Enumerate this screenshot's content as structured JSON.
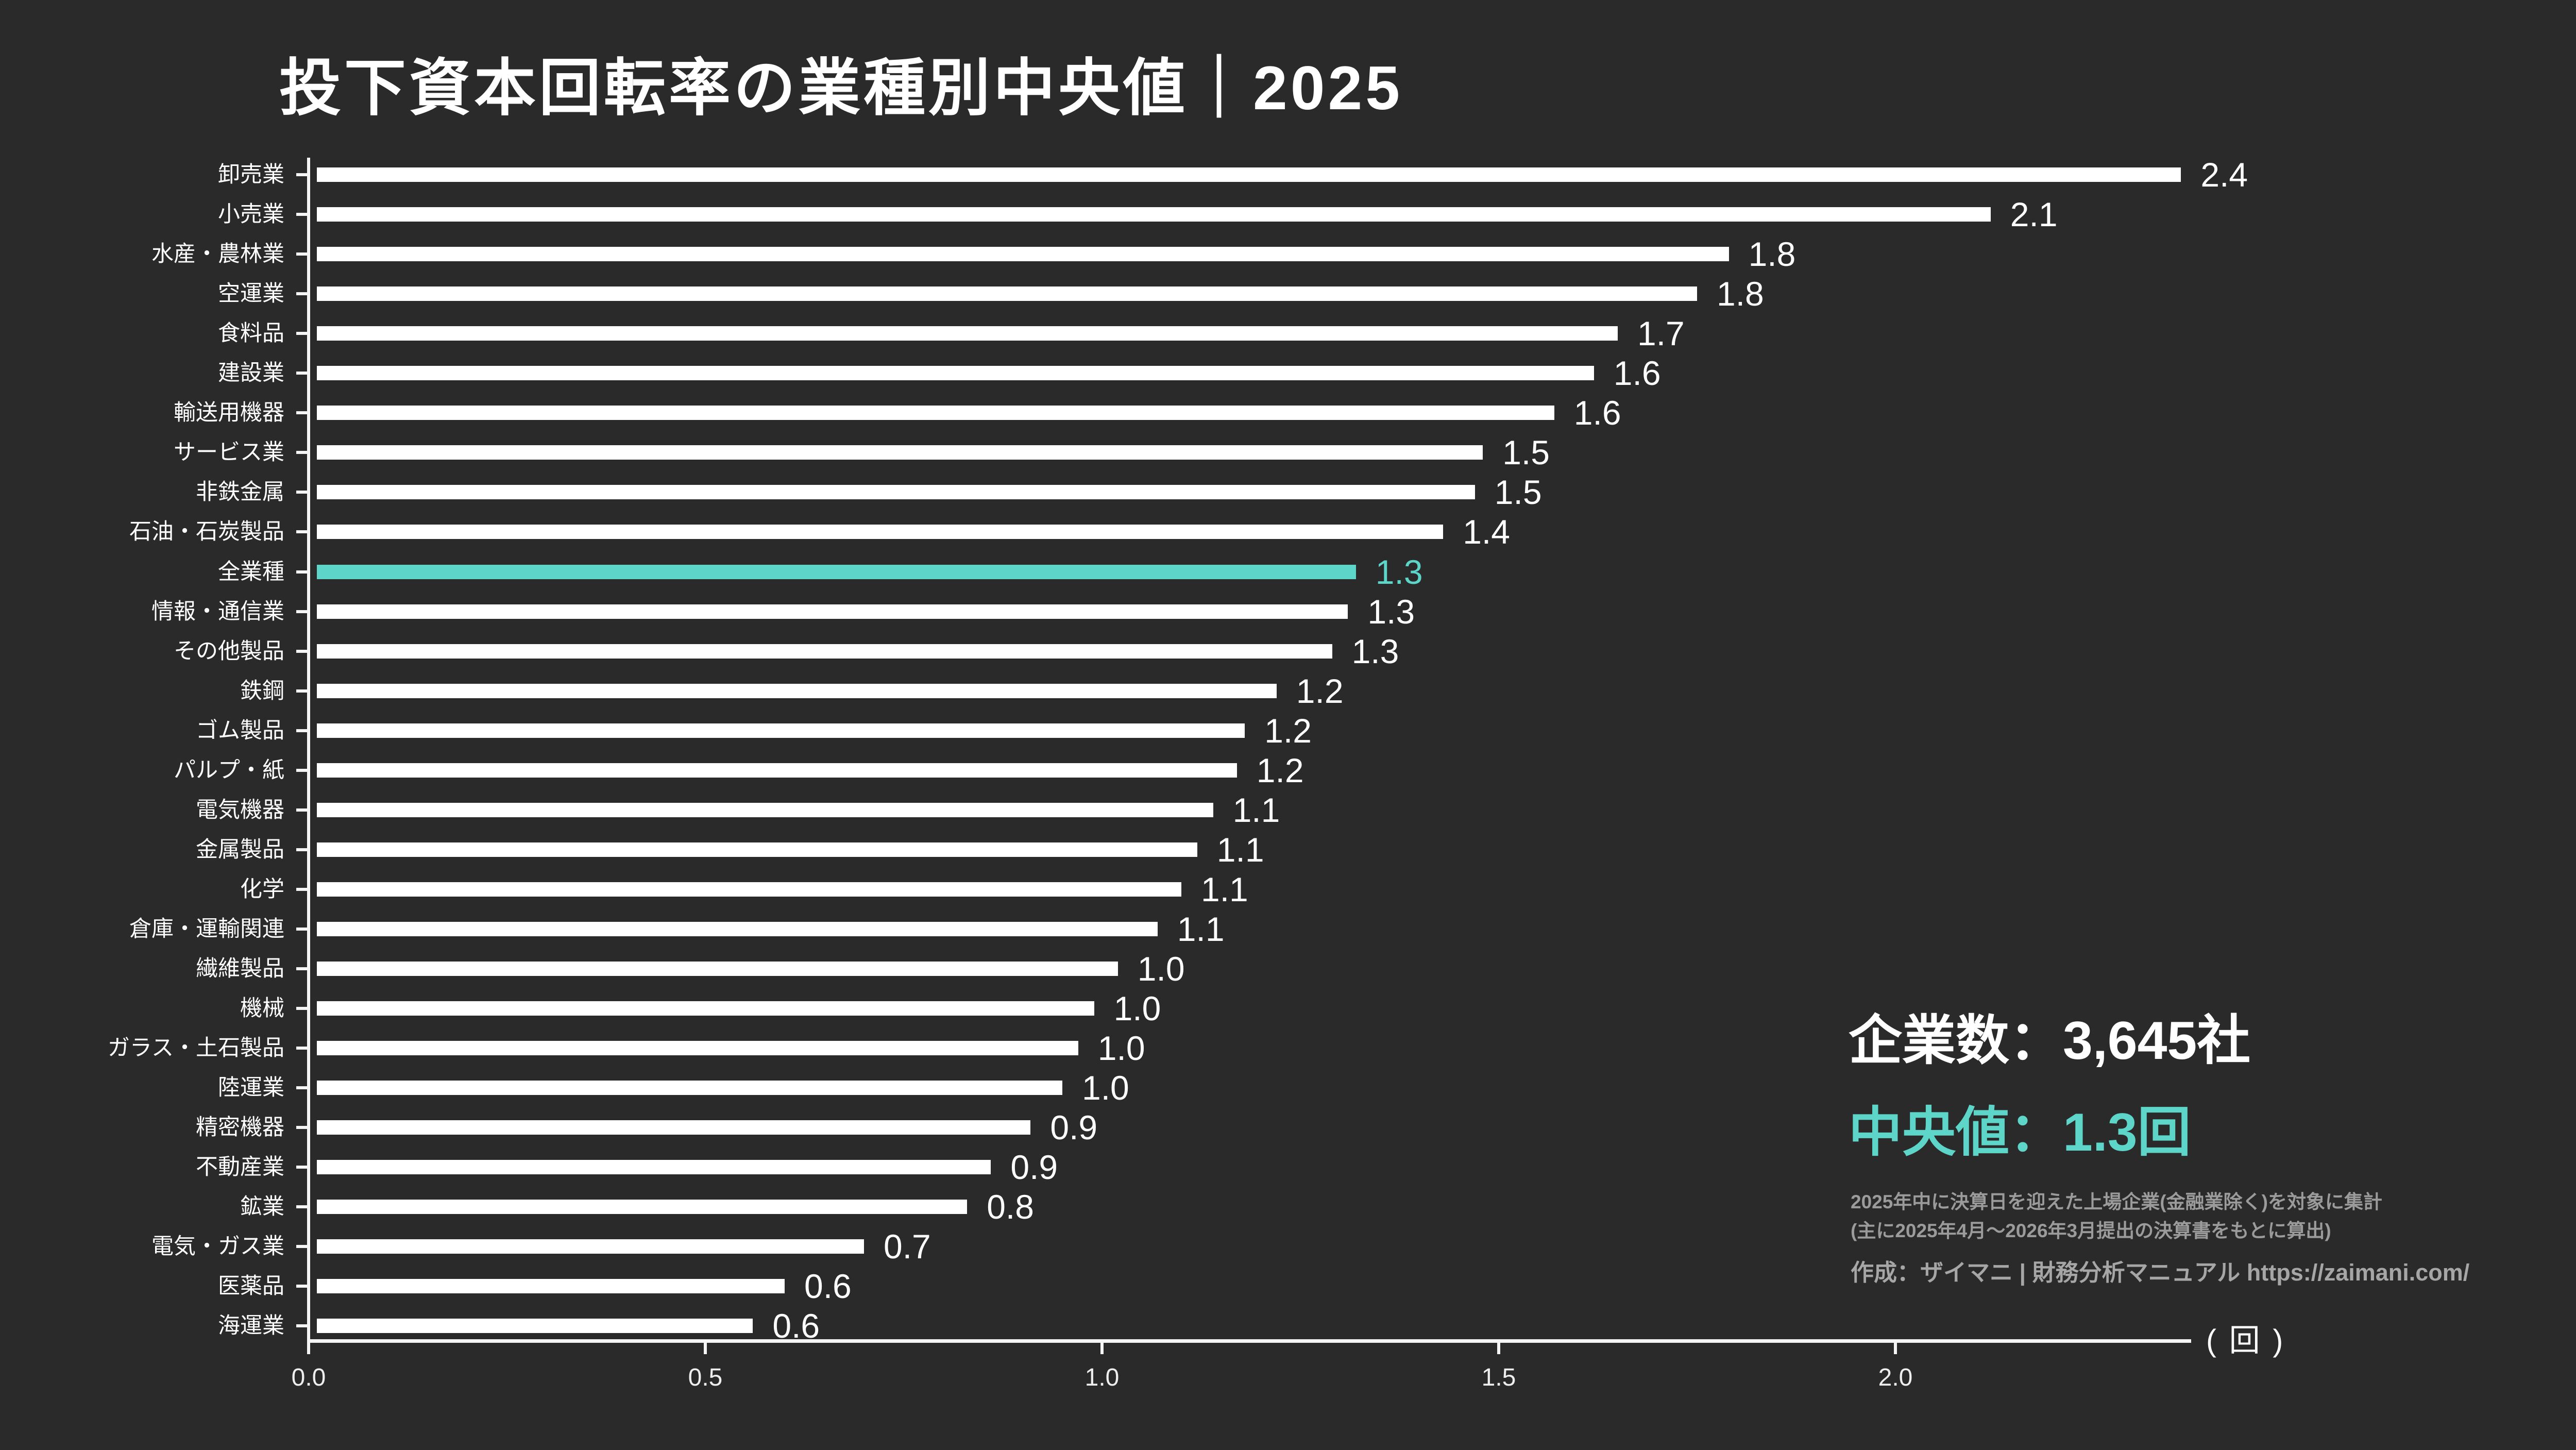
{
  "title": "投下資本回転率の業種別中央値｜2025",
  "chart_data": {
    "type": "bar",
    "orientation": "horizontal",
    "title": "投下資本回転率の業種別中央値｜2025",
    "unit": "回",
    "unit_label": "( 回 )",
    "grid": false,
    "legend": "none",
    "xlim": [
      0.0,
      2.37
    ],
    "x_tick_values": [
      0.0,
      0.5,
      1.0,
      1.5,
      2.0
    ],
    "x_tick_labels": [
      "0.0",
      "0.5",
      "1.0",
      "1.5",
      "2.0"
    ],
    "bar_color": "#ffffff",
    "highlight_color": "#5DD5C8",
    "highlight_index": 10,
    "highlight_category": "全業種",
    "categories": [
      "卸売業",
      "小売業",
      "水産・農林業",
      "空運業",
      "食料品",
      "建設業",
      "輸送用機器",
      "サービス業",
      "非鉄金属",
      "石油・石炭製品",
      "全業種",
      "情報・通信業",
      "その他製品",
      "鉄鋼",
      "ゴム製品",
      "パルプ・紙",
      "電気機器",
      "金属製品",
      "化学",
      "倉庫・運輸関連",
      "繊維製品",
      "機械",
      "ガラス・土石製品",
      "陸運業",
      "精密機器",
      "不動産業",
      "鉱業",
      "電気・ガス業",
      "医薬品",
      "海運業"
    ],
    "values": [
      2.4,
      2.1,
      1.8,
      1.8,
      1.7,
      1.6,
      1.6,
      1.5,
      1.5,
      1.4,
      1.3,
      1.3,
      1.3,
      1.2,
      1.2,
      1.2,
      1.1,
      1.1,
      1.1,
      1.1,
      1.0,
      1.0,
      1.0,
      1.0,
      0.9,
      0.9,
      0.8,
      0.7,
      0.6,
      0.6
    ],
    "value_labels": [
      "2.4",
      "2.1",
      "1.8",
      "1.8",
      "1.7",
      "1.6",
      "1.6",
      "1.5",
      "1.5",
      "1.4",
      "1.3",
      "1.3",
      "1.3",
      "1.2",
      "1.2",
      "1.2",
      "1.1",
      "1.1",
      "1.1",
      "1.1",
      "1.0",
      "1.0",
      "1.0",
      "1.0",
      "0.9",
      "0.9",
      "0.8",
      "0.7",
      "0.6",
      "0.6"
    ],
    "bar_lengths_unrounded_est": [
      2.36,
      2.12,
      1.79,
      1.75,
      1.65,
      1.62,
      1.57,
      1.48,
      1.47,
      1.43,
      1.32,
      1.31,
      1.29,
      1.22,
      1.18,
      1.17,
      1.14,
      1.12,
      1.1,
      1.07,
      1.02,
      0.99,
      0.97,
      0.95,
      0.91,
      0.86,
      0.83,
      0.7,
      0.6,
      0.56
    ]
  },
  "info_panel": {
    "companies_line": "企業数：3,645社",
    "median_line": "中央値：1.3回",
    "footnote_line1": "2025年中に決算日を迎えた上場企業(金融業除く)を対象に集計",
    "footnote_line2": "(主に2025年4月～2026年3月提出の決算書をもとに算出)",
    "credit_line": "作成：ザイマニ | 財務分析マニュアル https://zaimani.com/"
  },
  "colors": {
    "background": "#2A2A2A",
    "bar": "#ffffff",
    "accent_teal": "#5DD5C8",
    "text": "#ffffff",
    "tick_label": "#eeeeee",
    "footnote_gray": "#9b9b9b",
    "credit_gray": "#a6a6a6"
  }
}
